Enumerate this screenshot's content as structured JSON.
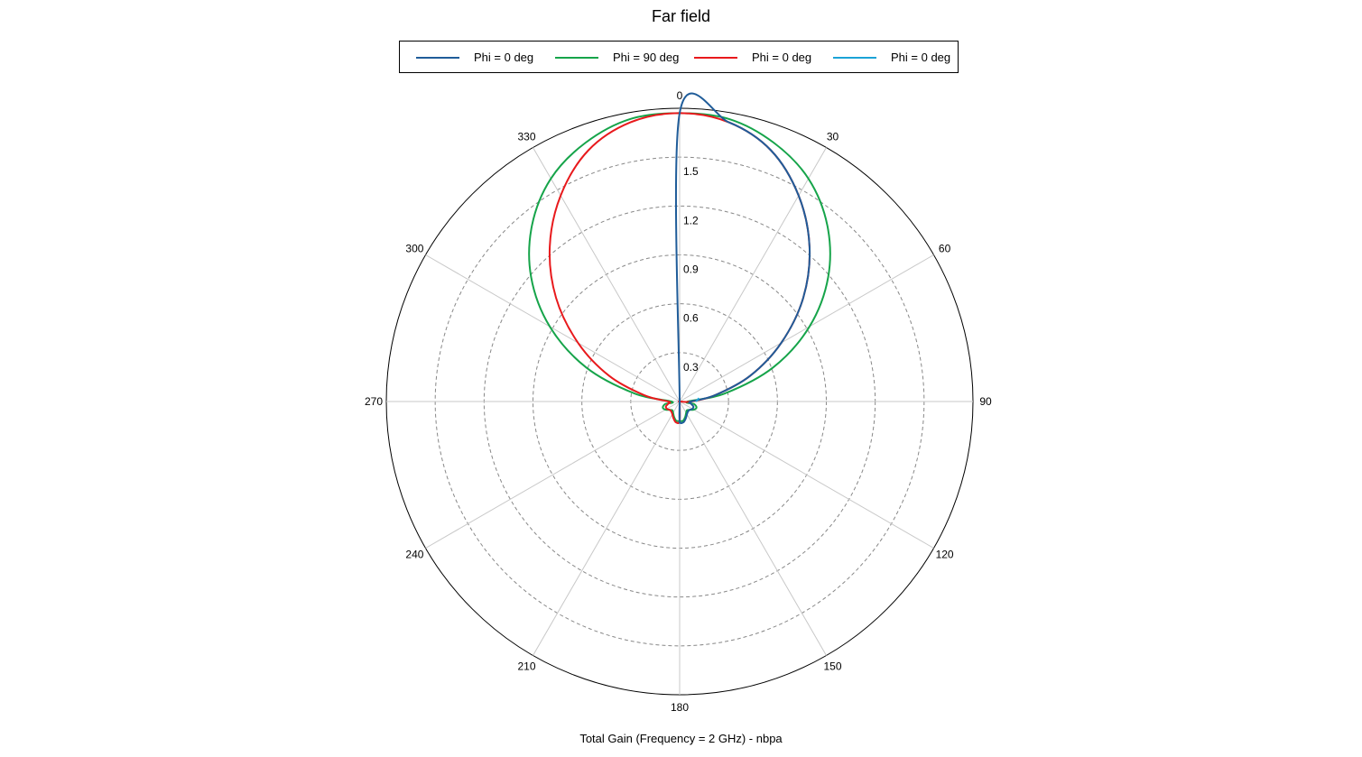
{
  "chart_data": {
    "type": "polar",
    "title": "Far field",
    "xlabel": "Total Gain (Frequency = 2 GHz) - nbpa",
    "angle_ticks": [
      "0",
      "30",
      "60",
      "90",
      "120",
      "150",
      "180",
      "210",
      "240",
      "270",
      "300",
      "330"
    ],
    "angle_direction": "clockwise",
    "zero_location": "top",
    "radial_ticks": [
      0.3,
      0.6,
      0.9,
      1.2,
      1.5
    ],
    "radial_range": [
      0,
      1.8
    ],
    "grid": true,
    "legend_position": "top",
    "series": [
      {
        "name": "Phi = 0 deg",
        "color": "#1f5c99",
        "angles": [
          0,
          10,
          20,
          30,
          40,
          50,
          60,
          70,
          80,
          90,
          100,
          110,
          120,
          130,
          140,
          150,
          160,
          170,
          180,
          190,
          200,
          210,
          220,
          230,
          240,
          250,
          260,
          270,
          280,
          290,
          300,
          310,
          320,
          330,
          340,
          350
        ],
        "values": [
          1.77,
          1.74,
          1.64,
          1.46,
          1.24,
          0.99,
          0.72,
          0.46,
          0.22,
          0.07,
          0.07,
          0.09,
          0.09,
          0.08,
          0.08,
          0.09,
          0.11,
          0.13,
          0.12,
          0.0,
          0.0,
          0.0,
          0.0,
          0.0,
          0.0,
          0.0,
          0.0,
          0.0,
          0.0,
          0.0,
          0.0,
          0.0,
          0.0,
          0.0,
          0.0,
          0.0
        ]
      },
      {
        "name": "Phi = 90 deg",
        "color": "#16a44a",
        "angles": [
          0,
          10,
          20,
          30,
          40,
          50,
          60,
          70,
          80,
          90,
          100,
          110,
          120,
          130,
          140,
          150,
          160,
          170,
          180,
          190,
          200,
          210,
          220,
          230,
          240,
          250,
          260,
          270,
          280,
          290,
          300,
          310,
          320,
          330,
          340,
          350
        ],
        "values": [
          1.77,
          1.76,
          1.69,
          1.58,
          1.41,
          1.19,
          0.92,
          0.61,
          0.28,
          0.05,
          0.09,
          0.11,
          0.1,
          0.08,
          0.07,
          0.08,
          0.1,
          0.12,
          0.12,
          0.12,
          0.1,
          0.08,
          0.07,
          0.08,
          0.1,
          0.11,
          0.09,
          0.05,
          0.28,
          0.61,
          0.92,
          1.19,
          1.41,
          1.58,
          1.69,
          1.76
        ]
      },
      {
        "name": "Phi = 0 deg",
        "color": "#e8191c",
        "angles": [
          0,
          10,
          20,
          30,
          40,
          50,
          60,
          70,
          80,
          90,
          100,
          110,
          120,
          130,
          140,
          150,
          160,
          170,
          180,
          190,
          200,
          210,
          220,
          230,
          240,
          250,
          260,
          270,
          280,
          290,
          300,
          310,
          320,
          330,
          340,
          350
        ],
        "values": [
          1.77,
          1.74,
          1.64,
          1.46,
          1.24,
          0.99,
          0.72,
          0.46,
          0.22,
          0.07,
          0.0,
          0.0,
          0.0,
          0.0,
          0.0,
          0.0,
          0.0,
          0.0,
          0.12,
          0.13,
          0.11,
          0.09,
          0.08,
          0.08,
          0.09,
          0.09,
          0.07,
          0.07,
          0.22,
          0.46,
          0.72,
          0.99,
          1.24,
          1.46,
          1.64,
          1.74
        ]
      },
      {
        "name": "Phi = 0 deg",
        "color": "#1ba3d6",
        "angles": [
          80,
          85,
          90
        ],
        "values": [
          0.12,
          0.11,
          0.1
        ]
      }
    ]
  }
}
